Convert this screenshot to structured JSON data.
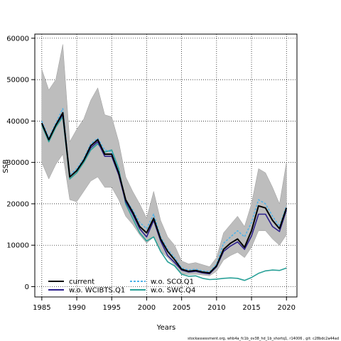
{
  "chart_data": {
    "type": "line",
    "xlabel": "Years",
    "ylabel": "SSB",
    "xlim": [
      1984,
      2021.5
    ],
    "ylim": [
      -2500,
      61000
    ],
    "x_ticks": [
      1985,
      1990,
      1995,
      2000,
      2005,
      2010,
      2015,
      2020
    ],
    "y_ticks": [
      0,
      10000,
      20000,
      30000,
      40000,
      50000,
      60000
    ],
    "grid": "dotted",
    "legend_position": "bottom-left",
    "footnote": "stockassessment.org, whb4a_fc1b_ov38_hd_1b_shortq1, r14006 , git: c28bdc2a44ad",
    "x": [
      1985,
      1986,
      1987,
      1988,
      1989,
      1990,
      1991,
      1992,
      1993,
      1994,
      1995,
      1996,
      1997,
      1998,
      1999,
      2000,
      2001,
      2002,
      2003,
      2004,
      2005,
      2006,
      2007,
      2008,
      2009,
      2010,
      2011,
      2012,
      2013,
      2014,
      2015,
      2016,
      2017,
      2018,
      2019,
      2020
    ],
    "band": {
      "upper": [
        52500,
        47500,
        50000,
        58500,
        35000,
        38000,
        40500,
        45000,
        48000,
        41500,
        41000,
        35000,
        26500,
        23000,
        20000,
        16500,
        23000,
        16000,
        12000,
        10000,
        6200,
        5500,
        5800,
        5300,
        4800,
        7000,
        13000,
        15000,
        17000,
        14500,
        20000,
        28500,
        27500,
        24000,
        20000,
        30000
      ],
      "lower": [
        30000,
        26000,
        29500,
        32000,
        21000,
        20500,
        23000,
        25500,
        26500,
        24000,
        24000,
        21000,
        17000,
        15000,
        12500,
        10500,
        12000,
        8500,
        7000,
        5200,
        3100,
        2900,
        3000,
        2800,
        2600,
        3700,
        6400,
        7500,
        8300,
        7000,
        9500,
        13500,
        13500,
        11500,
        10000,
        12500
      ]
    },
    "series": [
      {
        "name": "current",
        "color": "#000000",
        "dash": "solid",
        "values": [
          39500,
          35500,
          39000,
          42000,
          26500,
          28000,
          30500,
          34000,
          35500,
          32000,
          32000,
          27500,
          21000,
          18000,
          14500,
          13000,
          16500,
          11500,
          8500,
          6500,
          4200,
          3700,
          3900,
          3500,
          3300,
          5000,
          9000,
          10500,
          11500,
          9500,
          13500,
          19500,
          19000,
          16000,
          14000,
          19000
        ]
      },
      {
        "name": "w.o. WCIBTS.Q1",
        "color": "#2b1f8c",
        "dash": "solid",
        "values": [
          39500,
          35500,
          39000,
          41500,
          26500,
          28000,
          30500,
          33500,
          35000,
          31500,
          31500,
          27000,
          20500,
          17500,
          14000,
          12000,
          16000,
          11000,
          7500,
          5800,
          4000,
          3500,
          3700,
          3300,
          3100,
          4800,
          8500,
          9800,
          10800,
          9000,
          12200,
          17500,
          17500,
          14500,
          13300,
          18500
        ]
      },
      {
        "name": "w.o. SCO.Q1",
        "color": "#4fb3e8",
        "dash": "dashed",
        "values": [
          40000,
          36000,
          39500,
          43000,
          27000,
          28500,
          31000,
          34500,
          35800,
          33000,
          32500,
          28000,
          21000,
          18500,
          15500,
          14000,
          17500,
          12000,
          9000,
          7000,
          4500,
          4000,
          4200,
          3800,
          3600,
          5400,
          10500,
          12000,
          13500,
          12000,
          15500,
          21000,
          20000,
          17000,
          14500,
          19500
        ]
      },
      {
        "name": "w.o. SWC.Q4",
        "color": "#2aa198",
        "dash": "solid",
        "values": [
          39000,
          35000,
          38500,
          41000,
          26000,
          27500,
          30000,
          33000,
          34500,
          32500,
          33000,
          28500,
          20000,
          16500,
          13000,
          11000,
          12000,
          8500,
          6000,
          5000,
          3000,
          2500,
          2600,
          2000,
          1700,
          1800,
          2000,
          2100,
          2000,
          1500,
          2200,
          3200,
          3800,
          4000,
          3900,
          4500
        ]
      }
    ]
  }
}
